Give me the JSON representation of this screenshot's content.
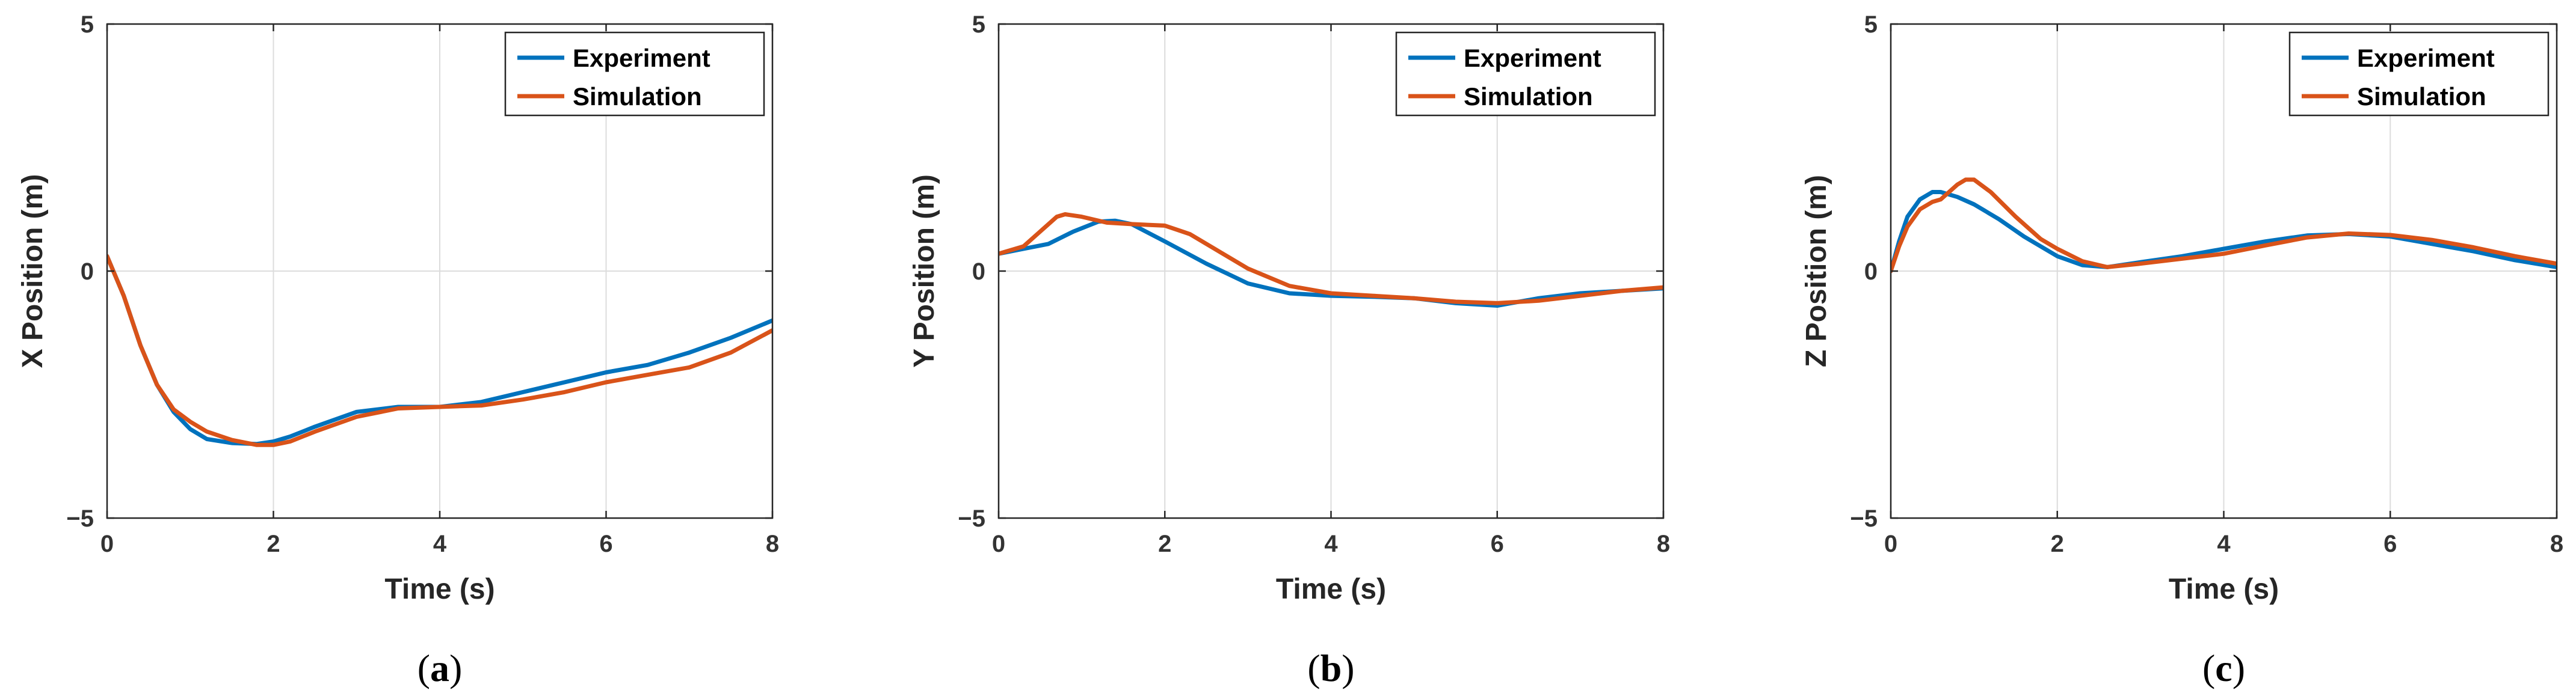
{
  "chart_data": [
    {
      "type": "line",
      "panel": "a",
      "caption": "a",
      "xlabel": "Time (s)",
      "ylabel": "X Position (m)",
      "xlim": [
        0,
        8
      ],
      "ylim": [
        -5,
        5
      ],
      "xticks": [
        0,
        2,
        4,
        6,
        8
      ],
      "yticks": [
        -5,
        0,
        5
      ],
      "xtick_labels": [
        "0",
        "2",
        "4",
        "6",
        "8"
      ],
      "ytick_labels": [
        "−5",
        "0",
        "5"
      ],
      "grid": true,
      "legend_position": "top-right",
      "series": [
        {
          "name": "Experiment",
          "color": "#0072BD",
          "x": [
            0,
            0.2,
            0.4,
            0.6,
            0.8,
            1.0,
            1.2,
            1.5,
            1.8,
            2.0,
            2.2,
            2.5,
            3.0,
            3.5,
            4.0,
            4.5,
            5.0,
            5.5,
            6.0,
            6.5,
            7.0,
            7.5,
            8.0
          ],
          "y": [
            0.3,
            -0.5,
            -1.5,
            -2.3,
            -2.85,
            -3.2,
            -3.4,
            -3.48,
            -3.5,
            -3.45,
            -3.35,
            -3.15,
            -2.85,
            -2.75,
            -2.75,
            -2.65,
            -2.45,
            -2.25,
            -2.05,
            -1.9,
            -1.65,
            -1.35,
            -1.0
          ]
        },
        {
          "name": "Simulation",
          "color": "#D95319",
          "x": [
            0,
            0.2,
            0.4,
            0.6,
            0.8,
            1.0,
            1.2,
            1.5,
            1.8,
            2.0,
            2.2,
            2.5,
            3.0,
            3.5,
            4.0,
            4.5,
            5.0,
            5.5,
            6.0,
            6.5,
            7.0,
            7.5,
            8.0
          ],
          "y": [
            0.3,
            -0.5,
            -1.5,
            -2.3,
            -2.8,
            -3.05,
            -3.25,
            -3.42,
            -3.52,
            -3.52,
            -3.45,
            -3.25,
            -2.95,
            -2.78,
            -2.75,
            -2.72,
            -2.6,
            -2.45,
            -2.25,
            -2.1,
            -1.95,
            -1.65,
            -1.2
          ]
        }
      ]
    },
    {
      "type": "line",
      "panel": "b",
      "caption": "b",
      "xlabel": "Time (s)",
      "ylabel": "Y Position (m)",
      "xlim": [
        0,
        8
      ],
      "ylim": [
        -5,
        5
      ],
      "xticks": [
        0,
        2,
        4,
        6,
        8
      ],
      "yticks": [
        -5,
        0,
        5
      ],
      "xtick_labels": [
        "0",
        "2",
        "4",
        "6",
        "8"
      ],
      "ytick_labels": [
        "−5",
        "0",
        "5"
      ],
      "grid": true,
      "legend_position": "top-right",
      "series": [
        {
          "name": "Experiment",
          "color": "#0072BD",
          "x": [
            0,
            0.3,
            0.6,
            0.9,
            1.2,
            1.4,
            1.6,
            2.0,
            2.5,
            3.0,
            3.5,
            4.0,
            4.5,
            5.0,
            5.5,
            6.0,
            6.5,
            7.0,
            7.5,
            8.0
          ],
          "y": [
            0.35,
            0.45,
            0.55,
            0.8,
            1.0,
            1.02,
            0.95,
            0.6,
            0.15,
            -0.25,
            -0.45,
            -0.5,
            -0.52,
            -0.55,
            -0.65,
            -0.7,
            -0.55,
            -0.45,
            -0.4,
            -0.35
          ]
        },
        {
          "name": "Simulation",
          "color": "#D95319",
          "x": [
            0,
            0.3,
            0.5,
            0.7,
            0.8,
            1.0,
            1.3,
            1.6,
            2.0,
            2.3,
            2.6,
            3.0,
            3.5,
            4.0,
            4.5,
            5.0,
            5.5,
            6.0,
            6.5,
            7.0,
            7.5,
            8.0
          ],
          "y": [
            0.35,
            0.5,
            0.8,
            1.1,
            1.15,
            1.1,
            0.98,
            0.95,
            0.92,
            0.75,
            0.45,
            0.05,
            -0.3,
            -0.45,
            -0.5,
            -0.55,
            -0.62,
            -0.65,
            -0.6,
            -0.5,
            -0.4,
            -0.33
          ]
        }
      ]
    },
    {
      "type": "line",
      "panel": "c",
      "caption": "c",
      "xlabel": "Time (s)",
      "ylabel": "Z Position (m)",
      "xlim": [
        0,
        8
      ],
      "ylim": [
        -5,
        5
      ],
      "xticks": [
        0,
        2,
        4,
        6,
        8
      ],
      "yticks": [
        -5,
        0,
        5
      ],
      "xtick_labels": [
        "0",
        "2",
        "4",
        "6",
        "8"
      ],
      "ytick_labels": [
        "−5",
        "0",
        "5"
      ],
      "grid": true,
      "legend_position": "top-right",
      "series": [
        {
          "name": "Experiment",
          "color": "#0072BD",
          "x": [
            0,
            0.1,
            0.2,
            0.35,
            0.5,
            0.6,
            0.8,
            1.0,
            1.3,
            1.6,
            2.0,
            2.3,
            2.6,
            3.0,
            3.5,
            4.0,
            4.5,
            5.0,
            5.5,
            6.0,
            6.5,
            7.0,
            7.5,
            8.0
          ],
          "y": [
            0.0,
            0.6,
            1.1,
            1.45,
            1.6,
            1.6,
            1.5,
            1.35,
            1.05,
            0.7,
            0.3,
            0.12,
            0.08,
            0.18,
            0.3,
            0.45,
            0.6,
            0.72,
            0.75,
            0.7,
            0.55,
            0.4,
            0.22,
            0.08
          ]
        },
        {
          "name": "Simulation",
          "color": "#D95319",
          "x": [
            0,
            0.1,
            0.2,
            0.35,
            0.5,
            0.6,
            0.8,
            0.9,
            1.0,
            1.2,
            1.5,
            1.8,
            2.0,
            2.3,
            2.6,
            3.0,
            3.5,
            4.0,
            4.5,
            5.0,
            5.5,
            6.0,
            6.5,
            7.0,
            7.5,
            8.0
          ],
          "y": [
            0.0,
            0.5,
            0.9,
            1.25,
            1.4,
            1.45,
            1.75,
            1.85,
            1.85,
            1.6,
            1.1,
            0.65,
            0.45,
            0.2,
            0.08,
            0.15,
            0.25,
            0.35,
            0.52,
            0.68,
            0.76,
            0.73,
            0.63,
            0.48,
            0.3,
            0.15
          ]
        }
      ]
    }
  ]
}
